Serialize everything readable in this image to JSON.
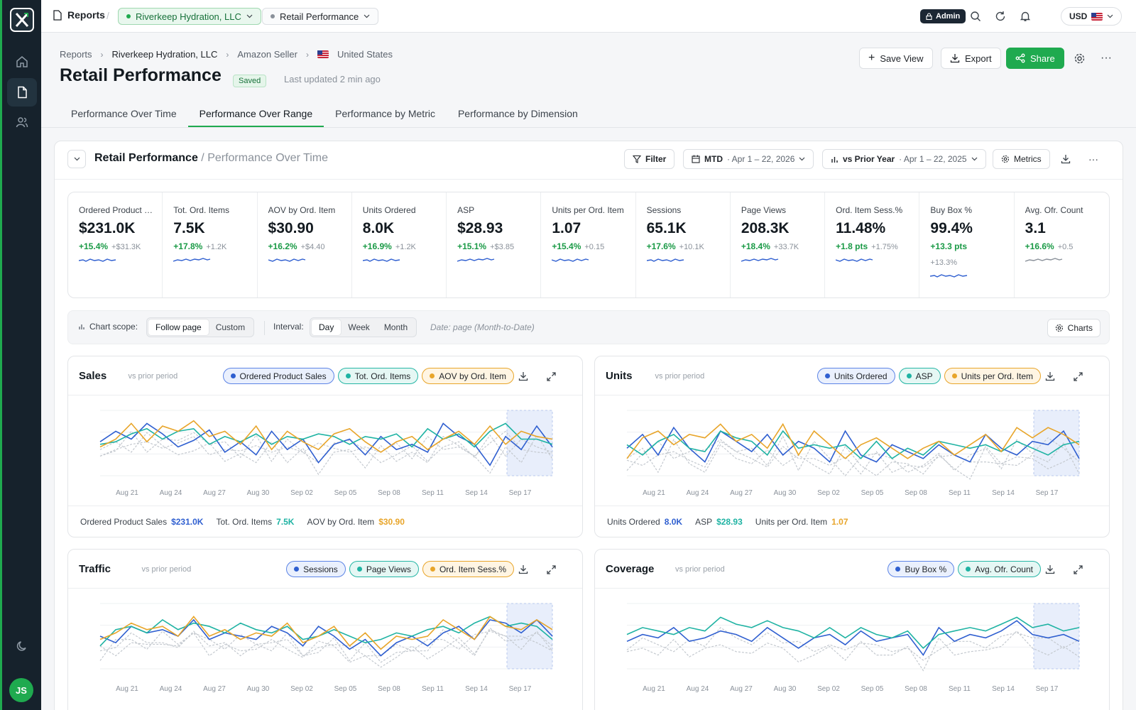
{
  "topbar": {
    "reports_label": "Reports",
    "account": "Riverkeep Hydration, LLC",
    "report": "Retail Performance",
    "admin": "Admin",
    "currency": "USD"
  },
  "breadcrumb": [
    "Reports",
    "Riverkeep Hydration, LLC",
    "Amazon Seller",
    "United States"
  ],
  "header": {
    "title": "Retail Performance",
    "saved": "Saved",
    "updated": "Last updated 2 min ago",
    "save_view": "Save View",
    "export": "Export",
    "share": "Share"
  },
  "tabs": [
    "Performance Over Time",
    "Performance Over Range",
    "Performance by Metric",
    "Performance by Dimension"
  ],
  "card": {
    "title": "Retail Performance",
    "subtitle": "/ Performance Over Time",
    "filter": "Filter",
    "period": "MTD",
    "period_range": "· Apr 1 – 22, 2026",
    "compare": "vs Prior Year",
    "compare_range": "· Apr 1 – 22, 2025",
    "metrics": "Metrics"
  },
  "kpis": [
    {
      "label": "Ordered Product Sales",
      "value": "$231.0K",
      "pct": "+15.4%",
      "abs": "+$31.3K"
    },
    {
      "label": "Tot. Ord. Items",
      "value": "7.5K",
      "pct": "+17.8%",
      "abs": "+1.2K"
    },
    {
      "label": "AOV by Ord. Item",
      "value": "$30.90",
      "pct": "+16.2%",
      "abs": "+$4.40"
    },
    {
      "label": "Units Ordered",
      "value": "8.0K",
      "pct": "+16.9%",
      "abs": "+1.2K"
    },
    {
      "label": "ASP",
      "value": "$28.93",
      "pct": "+15.1%",
      "abs": "+$3.85"
    },
    {
      "label": "Units per Ord. Item",
      "value": "1.07",
      "pct": "+15.4%",
      "abs": "+0.15"
    },
    {
      "label": "Sessions",
      "value": "65.1K",
      "pct": "+17.6%",
      "abs": "+10.1K"
    },
    {
      "label": "Page Views",
      "value": "208.3K",
      "pct": "+18.4%",
      "abs": "+33.7K"
    },
    {
      "label": "Ord. Item Sess.%",
      "value": "11.48%",
      "pct": "+1.8 pts",
      "abs": "+1.75%"
    },
    {
      "label": "Buy Box %",
      "value": "99.4%",
      "pct": "+13.3 pts",
      "abs": "",
      "extra": "+13.3%"
    },
    {
      "label": "Avg. Ofr. Count",
      "value": "3.1",
      "pct": "+16.6%",
      "abs": "+0.5"
    }
  ],
  "scope": {
    "label": "Chart scope:",
    "follow": "Follow page",
    "custom": "Custom",
    "interval_label": "Interval:",
    "day": "Day",
    "week": "Week",
    "month": "Month",
    "note": "Date: page (Month-to-Date)",
    "charts": "Charts"
  },
  "panels": [
    {
      "title": "Sales",
      "sub": "vs prior period",
      "chips": [
        "Ordered Product Sales",
        "Tot. Ord. Items",
        "AOV by Ord. Item"
      ],
      "foot": [
        {
          "label": "Ordered Product Sales",
          "value": "$231.0K"
        },
        {
          "label": "Tot. Ord. Items",
          "value": "7.5K"
        },
        {
          "label": "AOV by Ord. Item",
          "value": "$30.90"
        }
      ]
    },
    {
      "title": "Units",
      "sub": "vs prior period",
      "chips": [
        "Units Ordered",
        "ASP",
        "Units per Ord. Item"
      ],
      "foot": [
        {
          "label": "Units Ordered",
          "value": "8.0K"
        },
        {
          "label": "ASP",
          "value": "$28.93"
        },
        {
          "label": "Units per Ord. Item",
          "value": "1.07"
        }
      ]
    },
    {
      "title": "Traffic",
      "sub": "vs prior period",
      "chips": [
        "Sessions",
        "Page Views",
        "Ord. Item Sess.%"
      ]
    },
    {
      "title": "Coverage",
      "sub": "vs prior period",
      "chips": [
        "Buy Box %",
        "Avg. Ofr. Count"
      ]
    }
  ],
  "x_ticks": [
    "Aug 21",
    "Aug 24",
    "Aug 27",
    "Aug 30",
    "Sep 02",
    "Sep 05",
    "Sep 08",
    "Sep 11",
    "Sep 14",
    "Sep 17"
  ],
  "colors": {
    "blue": "#2f5fd0",
    "teal": "#1fb3a3",
    "orange": "#e8a52a",
    "green": "#1faa4f",
    "up": "#1a9a46"
  },
  "user_initials": "JS",
  "chart_data": [
    {
      "type": "line",
      "series": [
        {
          "name": "Ordered Product Sales",
          "values": [
            46,
            54,
            48,
            60,
            52,
            42,
            47,
            55,
            38,
            46,
            36,
            54,
            40,
            48,
            30,
            44,
            48,
            36,
            50,
            40,
            44,
            38,
            60,
            50,
            44,
            28,
            50,
            40,
            58,
            42
          ]
        },
        {
          "name": "Tot. Ord. Items",
          "values": [
            44,
            46,
            52,
            56,
            48,
            54,
            56,
            44,
            50,
            46,
            52,
            44,
            50,
            48,
            52,
            50,
            44,
            50,
            48,
            52,
            42,
            56,
            48,
            52,
            42,
            54,
            60,
            48,
            48,
            44
          ]
        },
        {
          "name": "AOV by Ord. Item",
          "values": [
            42,
            48,
            60,
            46,
            58,
            54,
            62,
            50,
            54,
            44,
            58,
            40,
            54,
            46,
            40,
            52,
            56,
            46,
            38,
            46,
            50,
            40,
            48,
            54,
            44,
            58,
            44,
            54,
            50,
            48
          ]
        }
      ]
    },
    {
      "type": "line",
      "series": [
        {
          "name": "Units Ordered",
          "values": [
            48,
            56,
            44,
            60,
            48,
            40,
            58,
            52,
            46,
            56,
            44,
            52,
            48,
            40,
            58,
            44,
            40,
            50,
            46,
            42,
            50,
            44,
            40,
            56,
            48,
            44,
            52,
            50,
            58,
            42
          ]
        },
        {
          "name": "ASP",
          "values": [
            50,
            44,
            52,
            56,
            48,
            46,
            58,
            54,
            52,
            44,
            58,
            48,
            50,
            48,
            50,
            42,
            52,
            42,
            48,
            44,
            52,
            50,
            48,
            50,
            46,
            52,
            48,
            44,
            50,
            52
          ]
        },
        {
          "name": "Units per Ord. Item",
          "values": [
            42,
            54,
            58,
            50,
            56,
            54,
            62,
            52,
            56,
            48,
            62,
            44,
            58,
            50,
            42,
            50,
            54,
            48,
            42,
            48,
            52,
            44,
            50,
            56,
            46,
            60,
            54,
            60,
            56,
            50
          ]
        }
      ]
    },
    {
      "type": "line",
      "series": [
        {
          "name": "Sessions",
          "values": [
            50,
            46,
            56,
            52,
            54,
            50,
            60,
            48,
            52,
            50,
            48,
            56,
            52,
            44,
            56,
            50,
            42,
            48,
            38,
            46,
            50,
            44,
            52,
            56,
            48,
            60,
            58,
            52,
            60,
            50
          ]
        },
        {
          "name": "Page Views",
          "values": [
            44,
            54,
            56,
            52,
            60,
            54,
            58,
            56,
            52,
            58,
            54,
            52,
            56,
            48,
            50,
            54,
            50,
            46,
            48,
            52,
            50,
            54,
            56,
            52,
            58,
            62,
            56,
            58,
            56,
            48
          ]
        },
        {
          "name": "Ord. Item Sess.%",
          "values": [
            48,
            52,
            58,
            54,
            56,
            50,
            62,
            50,
            54,
            48,
            52,
            50,
            58,
            46,
            50,
            56,
            44,
            52,
            42,
            50,
            48,
            50,
            60,
            54,
            48,
            62,
            56,
            54,
            60,
            54
          ]
        }
      ]
    },
    {
      "type": "line",
      "series": [
        {
          "name": "Buy Box %",
          "values": [
            48,
            52,
            50,
            56,
            48,
            50,
            54,
            52,
            48,
            56,
            50,
            44,
            50,
            52,
            46,
            54,
            48,
            50,
            52,
            40,
            56,
            48,
            52,
            50,
            54,
            60,
            52,
            50,
            52,
            48
          ]
        },
        {
          "name": "Avg. Ofr. Count",
          "values": [
            52,
            56,
            54,
            52,
            56,
            54,
            62,
            58,
            56,
            60,
            56,
            54,
            50,
            56,
            50,
            56,
            52,
            50,
            54,
            44,
            52,
            54,
            56,
            54,
            58,
            62,
            56,
            58,
            54,
            56
          ]
        }
      ]
    }
  ]
}
